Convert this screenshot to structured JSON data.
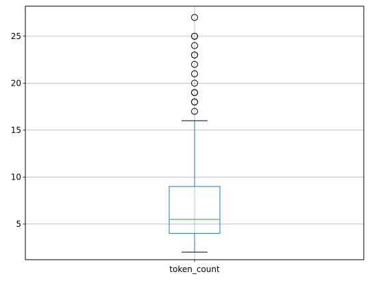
{
  "chart_data": {
    "type": "box",
    "title": "",
    "xlabel": "",
    "ylabel": "",
    "categories": [
      "token_count"
    ],
    "ylim": [
      1.2,
      28.2
    ],
    "yticks": [
      5,
      10,
      15,
      20,
      25
    ],
    "ytick_labels": [
      "5",
      "10",
      "15",
      "20",
      "25"
    ],
    "grid": true,
    "boxes": [
      {
        "name": "token_count",
        "whisker_low": 2,
        "q1": 4,
        "median": 5.5,
        "q3": 9,
        "whisker_high": 16,
        "outliers": [
          17,
          18,
          18,
          19,
          19,
          20,
          21,
          22,
          23,
          23,
          24,
          25,
          25,
          27
        ]
      }
    ],
    "colors": {
      "box": "#1f77b4",
      "median": "#2ca02c",
      "whisker": "#1f77b4",
      "cap": "#000000",
      "outlier": "#000000",
      "grid": "#b0b0b0"
    }
  }
}
